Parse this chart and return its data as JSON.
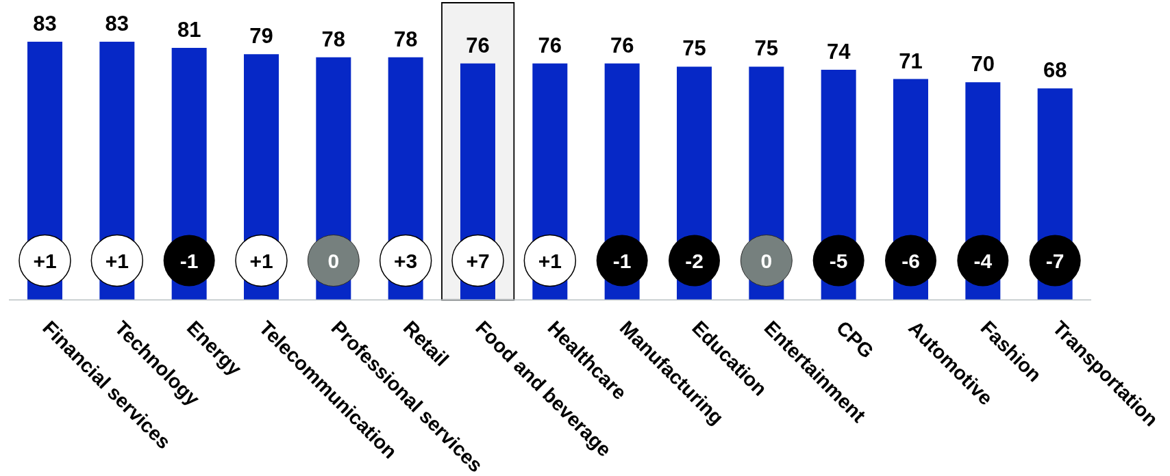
{
  "chart_data": {
    "type": "bar",
    "categories": [
      "Financial services",
      "Technology",
      "Energy",
      "Telecommunication",
      "Professional services",
      "Retail",
      "Food and beverage",
      "Healthcare",
      "Manufacturing",
      "Education",
      "Entertainment",
      "CPG",
      "Automotive",
      "Fashion",
      "Transportation"
    ],
    "values": [
      83,
      83,
      81,
      79,
      78,
      78,
      76,
      76,
      76,
      75,
      75,
      74,
      71,
      70,
      68
    ],
    "color": "#0628c6",
    "data_labels": true,
    "annotations": [
      "+1",
      "+1",
      "-1",
      "+1",
      "0",
      "+3",
      "+7",
      "+1",
      "-1",
      "-2",
      "0",
      "-5",
      "-6",
      "-4",
      "-7"
    ],
    "bands": [
      {
        "axis": "x",
        "from": "Food and beverage",
        "to": "Food and beverage",
        "color": "#000000"
      }
    ]
  }
}
